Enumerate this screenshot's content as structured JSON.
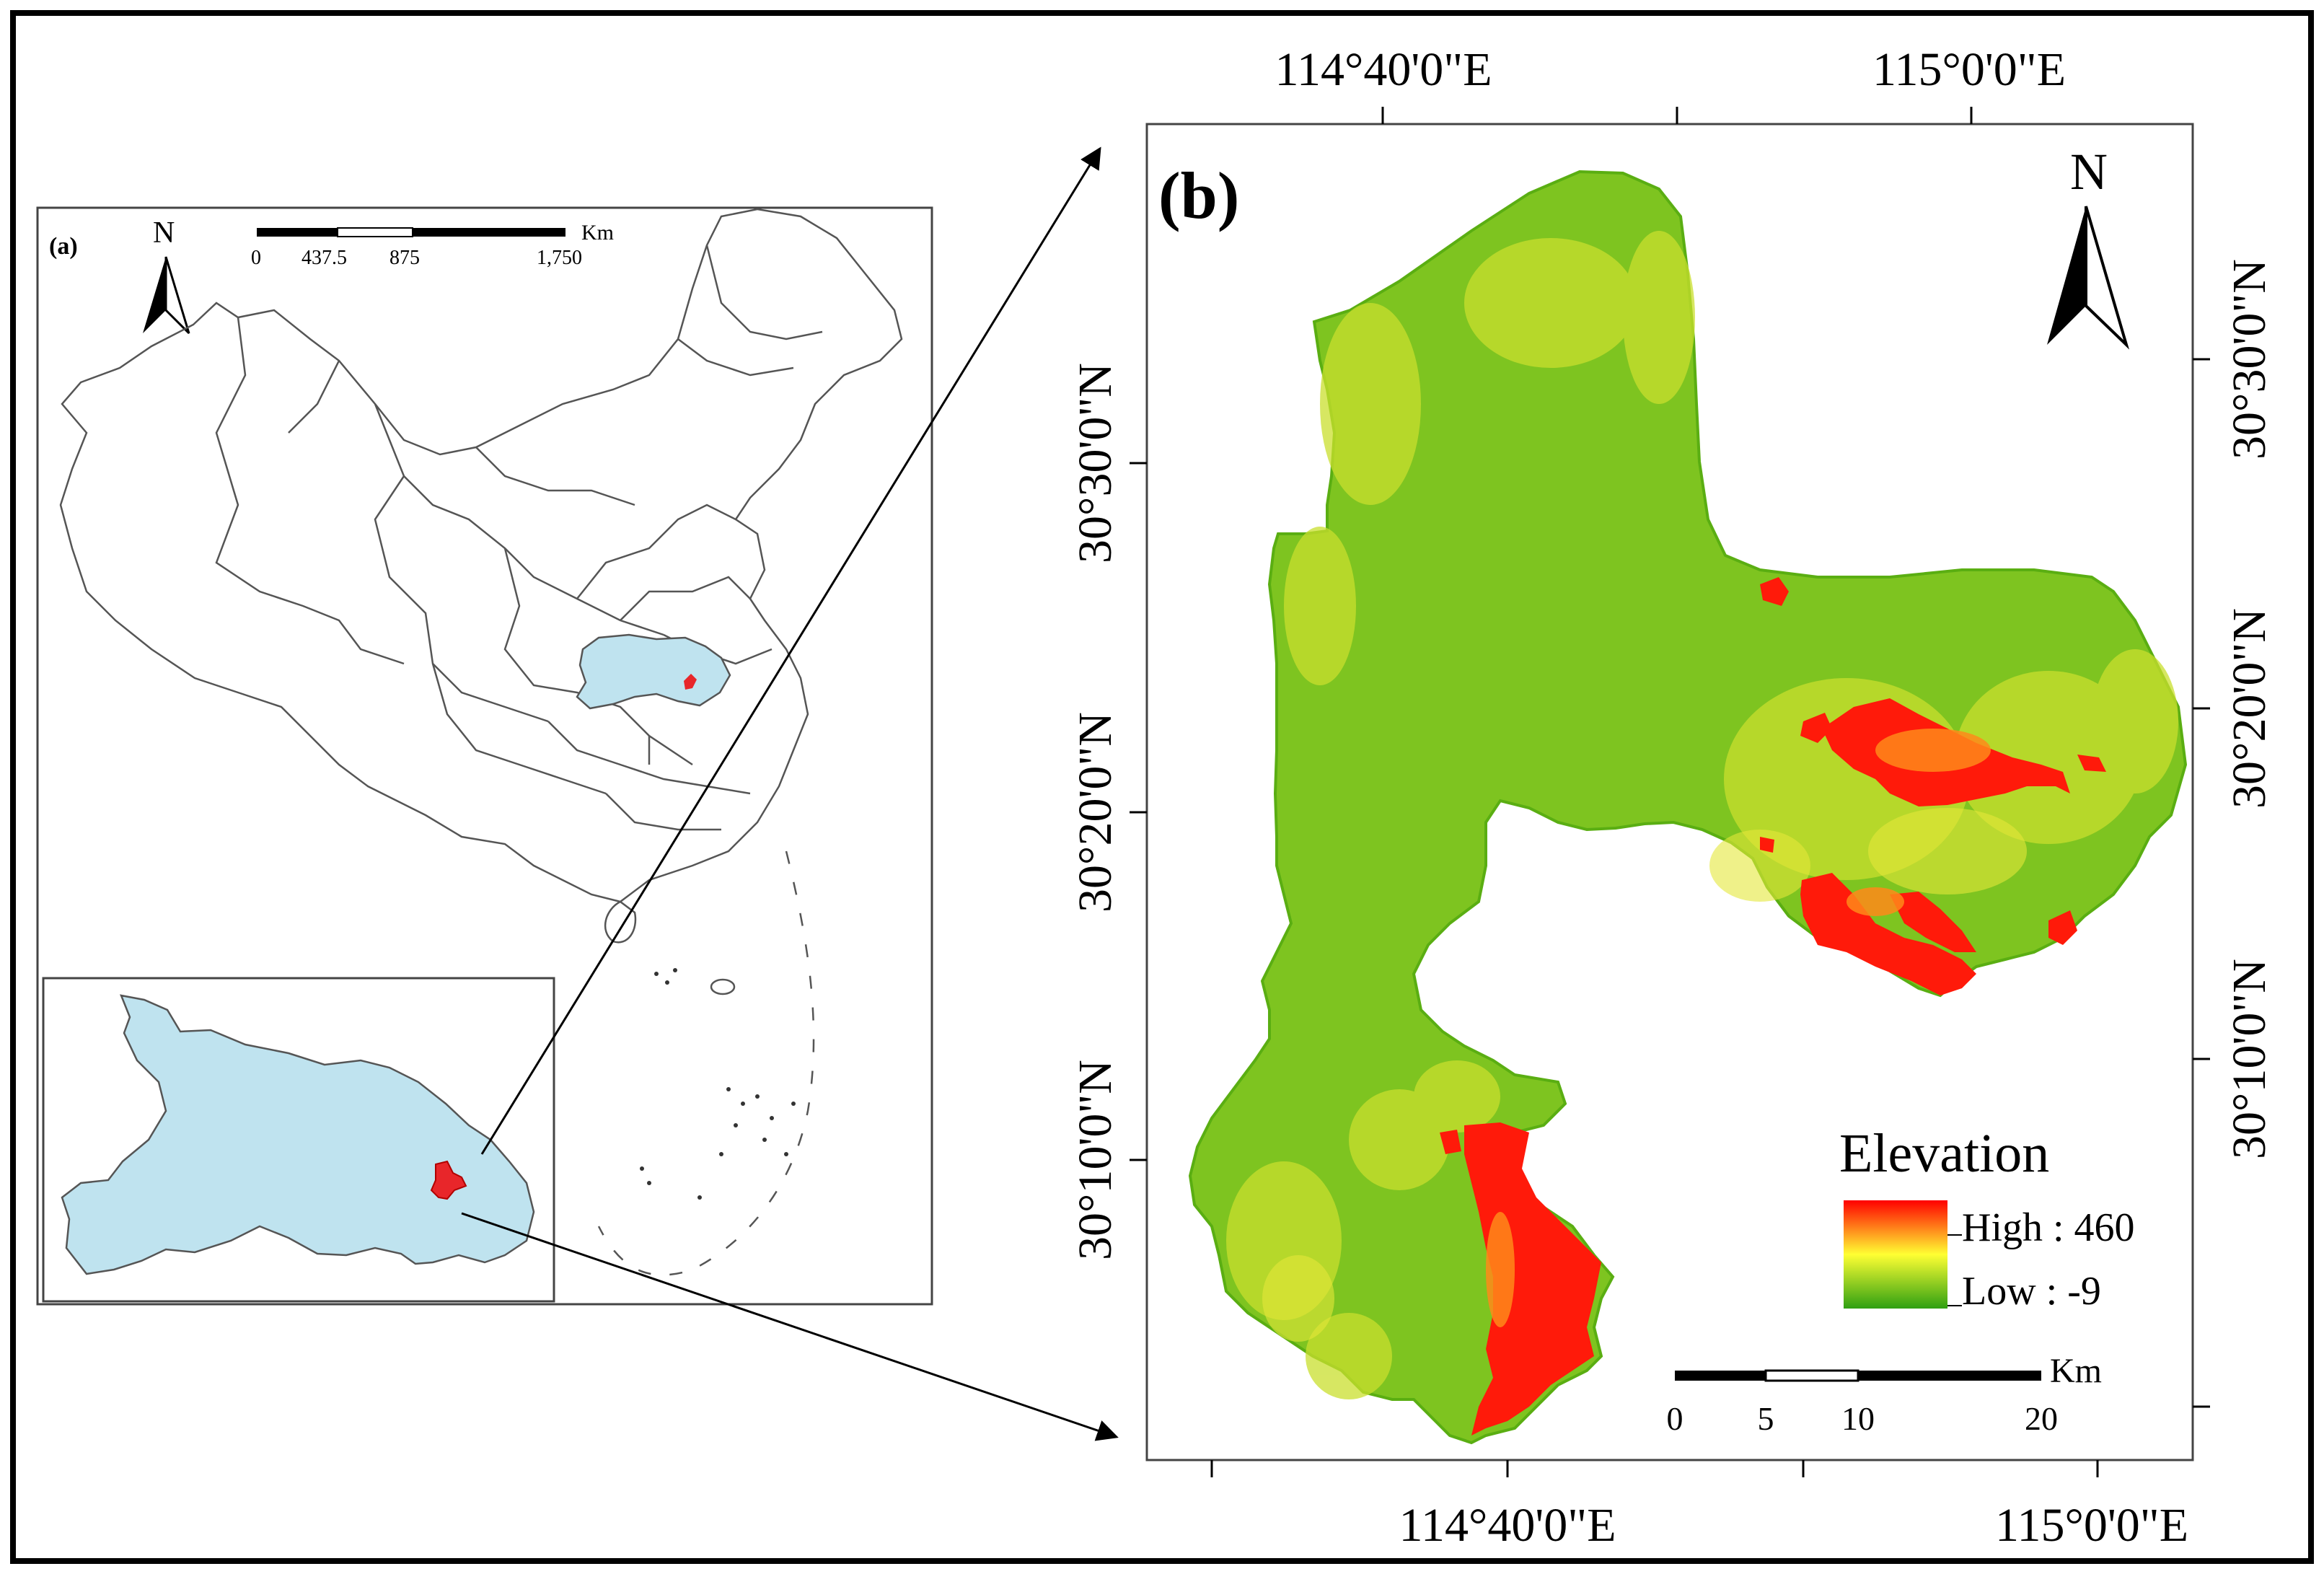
{
  "panel_a": {
    "label": "(a)",
    "north_label": "N",
    "scale_unit": "Km",
    "scale_ticks": [
      "0",
      "437.5",
      "875",
      "1,750"
    ],
    "colors": {
      "highlight_province": "#bfe3ef",
      "study_area": "#e8262a",
      "boundary": "#555555"
    }
  },
  "panel_b": {
    "label": "(b)",
    "north_label": "N",
    "top_lon_labels": [
      "114°40'0\"E",
      "115°0'0\"E"
    ],
    "bottom_lon_labels": [
      "114°40'0\"E",
      "115°0'0\"E"
    ],
    "left_lat_labels": [
      "30°30'0\"N",
      "30°20'0\"N",
      "30°10'0\"N"
    ],
    "right_lat_labels": [
      "30°30'0\"N",
      "30°20'0\"N",
      "30°10'0\"N"
    ],
    "legend": {
      "title": "Elevation",
      "high_label": "High : 460",
      "low_label": "Low : -9",
      "colors": [
        "#ff0000",
        "#ffff33",
        "#2fa012"
      ]
    },
    "scale_unit": "Km",
    "scale_ticks": [
      "0",
      "5",
      "10",
      "20"
    ]
  }
}
